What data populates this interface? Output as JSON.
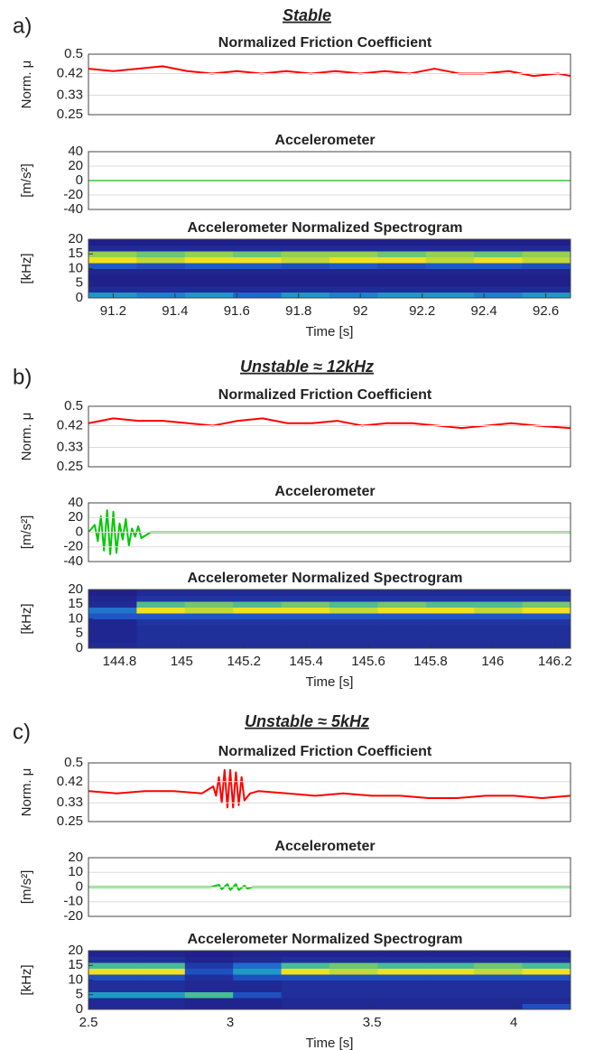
{
  "chart_data": [
    {
      "type": "line",
      "panel_label": "a)",
      "panel_title": "Stable",
      "title": "Normalized Friction Coefficient",
      "ylabel": "Norm. μ",
      "color": "#ff0000",
      "grid": true,
      "xlim": [
        91.12,
        92.68
      ],
      "ylim": [
        0.25,
        0.5
      ],
      "yticks": [
        0.25,
        0.33,
        0.42,
        0.5
      ],
      "x": [
        91.12,
        91.2,
        91.28,
        91.36,
        91.44,
        91.52,
        91.6,
        91.68,
        91.76,
        91.84,
        91.92,
        92,
        92.08,
        92.16,
        92.24,
        92.32,
        92.4,
        92.48,
        92.56,
        92.64,
        92.68
      ],
      "values": [
        0.44,
        0.43,
        0.44,
        0.45,
        0.43,
        0.42,
        0.43,
        0.42,
        0.43,
        0.42,
        0.43,
        0.42,
        0.43,
        0.42,
        0.44,
        0.42,
        0.42,
        0.43,
        0.41,
        0.42,
        0.41
      ]
    },
    {
      "type": "line",
      "title": "Accelerometer",
      "ylabel": "[m/s²]",
      "color": "#00c800",
      "grid": true,
      "xlim": [
        91.12,
        92.68
      ],
      "ylim": [
        -40,
        40
      ],
      "yticks": [
        -40,
        -20,
        0,
        20,
        40
      ],
      "x": [
        91.12,
        92.68
      ],
      "values": [
        0,
        0
      ]
    },
    {
      "type": "spectrogram",
      "title": "Accelerometer Normalized Spectrogram",
      "ylabel": "[kHz]",
      "xlabel": "Time [s]",
      "xlim": [
        91.12,
        92.68
      ],
      "xticks": [
        91.2,
        91.4,
        91.6,
        91.8,
        92,
        92.2,
        92.4,
        92.6
      ],
      "ylim": [
        0,
        20
      ],
      "yticks": [
        0,
        5,
        10,
        15,
        20
      ],
      "z": [
        [
          0.5,
          0.45,
          0.5,
          0.4,
          0.5,
          0.45,
          0.5,
          0.5,
          0.45,
          0.5
        ],
        [
          0.15,
          0.15,
          0.15,
          0.15,
          0.15,
          0.15,
          0.15,
          0.15,
          0.15,
          0.15
        ],
        [
          0.1,
          0.1,
          0.1,
          0.1,
          0.1,
          0.1,
          0.1,
          0.1,
          0.1,
          0.1
        ],
        [
          0.1,
          0.1,
          0.1,
          0.1,
          0.1,
          0.1,
          0.1,
          0.1,
          0.1,
          0.1
        ],
        [
          0.12,
          0.12,
          0.12,
          0.12,
          0.12,
          0.12,
          0.12,
          0.12,
          0.12,
          0.12
        ],
        [
          0.35,
          0.3,
          0.35,
          0.35,
          0.3,
          0.35,
          0.3,
          0.35,
          0.35,
          0.3
        ],
        [
          0.8,
          0.75,
          0.8,
          0.8,
          0.75,
          0.8,
          0.8,
          0.75,
          0.8,
          0.75
        ],
        [
          0.7,
          0.65,
          0.7,
          0.65,
          0.7,
          0.7,
          0.65,
          0.7,
          0.65,
          0.7
        ],
        [
          0.15,
          0.15,
          0.15,
          0.15,
          0.15,
          0.15,
          0.15,
          0.15,
          0.15,
          0.15
        ],
        [
          0.1,
          0.1,
          0.1,
          0.1,
          0.1,
          0.1,
          0.1,
          0.1,
          0.1,
          0.1
        ]
      ]
    },
    {
      "type": "line",
      "panel_label": "b)",
      "panel_title": "Unstable ≈ 12kHz",
      "title": "Normalized Friction Coefficient",
      "ylabel": "Norm. μ",
      "color": "#ff0000",
      "grid": true,
      "xlim": [
        144.7,
        146.25
      ],
      "ylim": [
        0.25,
        0.5
      ],
      "yticks": [
        0.25,
        0.33,
        0.42,
        0.5
      ],
      "x": [
        144.7,
        144.78,
        144.86,
        144.94,
        145.02,
        145.1,
        145.18,
        145.26,
        145.34,
        145.42,
        145.5,
        145.58,
        145.66,
        145.74,
        145.82,
        145.9,
        145.98,
        146.06,
        146.14,
        146.25
      ],
      "values": [
        0.43,
        0.45,
        0.44,
        0.44,
        0.43,
        0.42,
        0.44,
        0.45,
        0.43,
        0.43,
        0.44,
        0.42,
        0.43,
        0.43,
        0.42,
        0.41,
        0.42,
        0.43,
        0.42,
        0.41
      ]
    },
    {
      "type": "line",
      "title": "Accelerometer",
      "ylabel": "[m/s²]",
      "color": "#00c800",
      "grid": true,
      "xlim": [
        144.7,
        146.25
      ],
      "ylim": [
        -40,
        40
      ],
      "yticks": [
        -40,
        -20,
        0,
        20,
        40
      ],
      "x": [
        144.7,
        144.72,
        144.73,
        144.74,
        144.75,
        144.76,
        144.77,
        144.78,
        144.79,
        144.8,
        144.81,
        144.82,
        144.83,
        144.84,
        144.85,
        144.86,
        144.87,
        144.9,
        146.25
      ],
      "values": [
        0,
        10,
        -12,
        22,
        -25,
        30,
        -30,
        28,
        -28,
        12,
        -10,
        18,
        -18,
        5,
        -6,
        8,
        -8,
        0,
        0
      ]
    },
    {
      "type": "spectrogram",
      "title": "Accelerometer Normalized Spectrogram",
      "ylabel": "[kHz]",
      "xlabel": "Time [s]",
      "xlim": [
        144.7,
        146.25
      ],
      "xticks": [
        144.8,
        145,
        145.2,
        145.4,
        145.6,
        145.8,
        146,
        146.2
      ],
      "ylim": [
        0,
        20
      ],
      "yticks": [
        0,
        5,
        10,
        15,
        20
      ],
      "z": [
        [
          0.1,
          0.12,
          0.12,
          0.12,
          0.12,
          0.12,
          0.12,
          0.12,
          0.12,
          0.12
        ],
        [
          0.08,
          0.12,
          0.12,
          0.12,
          0.12,
          0.12,
          0.12,
          0.12,
          0.12,
          0.12
        ],
        [
          0.08,
          0.12,
          0.12,
          0.12,
          0.12,
          0.12,
          0.12,
          0.12,
          0.12,
          0.12
        ],
        [
          0.08,
          0.12,
          0.12,
          0.12,
          0.12,
          0.12,
          0.12,
          0.12,
          0.12,
          0.12
        ],
        [
          0.08,
          0.15,
          0.15,
          0.15,
          0.15,
          0.15,
          0.15,
          0.15,
          0.15,
          0.15
        ],
        [
          0.3,
          0.3,
          0.3,
          0.3,
          0.3,
          0.3,
          0.3,
          0.3,
          0.3,
          0.3
        ],
        [
          0.4,
          0.8,
          0.75,
          0.8,
          0.8,
          0.75,
          0.8,
          0.8,
          0.75,
          0.8
        ],
        [
          0.1,
          0.6,
          0.65,
          0.6,
          0.65,
          0.6,
          0.65,
          0.6,
          0.6,
          0.65
        ],
        [
          0.08,
          0.15,
          0.15,
          0.15,
          0.15,
          0.15,
          0.15,
          0.15,
          0.15,
          0.15
        ],
        [
          0.05,
          0.1,
          0.1,
          0.1,
          0.1,
          0.1,
          0.1,
          0.1,
          0.1,
          0.1
        ]
      ]
    },
    {
      "type": "line",
      "panel_label": "c)",
      "panel_title": "Unstable ≈ 5kHz",
      "title": "Normalized Friction Coefficient",
      "ylabel": "Norm. μ",
      "color": "#ff0000",
      "grid": true,
      "xlim": [
        2.5,
        4.2
      ],
      "ylim": [
        0.25,
        0.5
      ],
      "yticks": [
        0.25,
        0.33,
        0.42,
        0.5
      ],
      "x": [
        2.5,
        2.6,
        2.7,
        2.8,
        2.9,
        2.94,
        2.95,
        2.96,
        2.97,
        2.98,
        2.99,
        3.0,
        3.01,
        3.02,
        3.03,
        3.04,
        3.05,
        3.07,
        3.1,
        3.2,
        3.3,
        3.4,
        3.5,
        3.6,
        3.7,
        3.8,
        3.9,
        4.0,
        4.1,
        4.2
      ],
      "values": [
        0.38,
        0.37,
        0.38,
        0.38,
        0.37,
        0.4,
        0.36,
        0.44,
        0.33,
        0.47,
        0.31,
        0.47,
        0.31,
        0.46,
        0.32,
        0.44,
        0.34,
        0.37,
        0.38,
        0.37,
        0.36,
        0.37,
        0.36,
        0.36,
        0.35,
        0.35,
        0.36,
        0.36,
        0.35,
        0.36
      ]
    },
    {
      "type": "line",
      "title": "Accelerometer",
      "ylabel": "[m/s²]",
      "color": "#00c800",
      "grid": true,
      "xlim": [
        2.5,
        4.2
      ],
      "ylim": [
        -20,
        20
      ],
      "yticks": [
        -20,
        -10,
        0,
        10,
        20
      ],
      "x": [
        2.5,
        2.93,
        2.96,
        2.97,
        2.99,
        3.0,
        3.02,
        3.03,
        3.05,
        3.06,
        3.08,
        4.2
      ],
      "values": [
        0,
        0,
        1.5,
        -1.5,
        2,
        -2,
        2,
        -2,
        1,
        -1,
        0,
        0
      ]
    },
    {
      "type": "spectrogram",
      "title": "Accelerometer Normalized Spectrogram",
      "ylabel": "[kHz]",
      "xlabel": "Time [s]",
      "xlim": [
        2.5,
        4.2
      ],
      "xticks": [
        2.5,
        3,
        3.5,
        4
      ],
      "ylim": [
        0,
        20
      ],
      "yticks": [
        0,
        5,
        10,
        15,
        20
      ],
      "z": [
        [
          0.12,
          0.12,
          0.1,
          0.1,
          0.12,
          0.12,
          0.12,
          0.12,
          0.12,
          0.3
        ],
        [
          0.12,
          0.12,
          0.1,
          0.1,
          0.12,
          0.12,
          0.12,
          0.12,
          0.12,
          0.12
        ],
        [
          0.5,
          0.5,
          0.6,
          0.3,
          0.15,
          0.15,
          0.15,
          0.15,
          0.15,
          0.15
        ],
        [
          0.15,
          0.15,
          0.12,
          0.12,
          0.15,
          0.15,
          0.15,
          0.15,
          0.15,
          0.15
        ],
        [
          0.15,
          0.15,
          0.12,
          0.12,
          0.15,
          0.15,
          0.15,
          0.15,
          0.15,
          0.15
        ],
        [
          0.3,
          0.3,
          0.15,
          0.3,
          0.3,
          0.3,
          0.3,
          0.3,
          0.3,
          0.3
        ],
        [
          0.8,
          0.8,
          0.3,
          0.5,
          0.8,
          0.75,
          0.8,
          0.8,
          0.75,
          0.8
        ],
        [
          0.6,
          0.6,
          0.2,
          0.4,
          0.6,
          0.65,
          0.6,
          0.6,
          0.65,
          0.6
        ],
        [
          0.15,
          0.15,
          0.1,
          0.12,
          0.15,
          0.15,
          0.15,
          0.15,
          0.15,
          0.15
        ],
        [
          0.1,
          0.1,
          0.08,
          0.1,
          0.1,
          0.1,
          0.1,
          0.1,
          0.1,
          0.1
        ]
      ]
    }
  ]
}
